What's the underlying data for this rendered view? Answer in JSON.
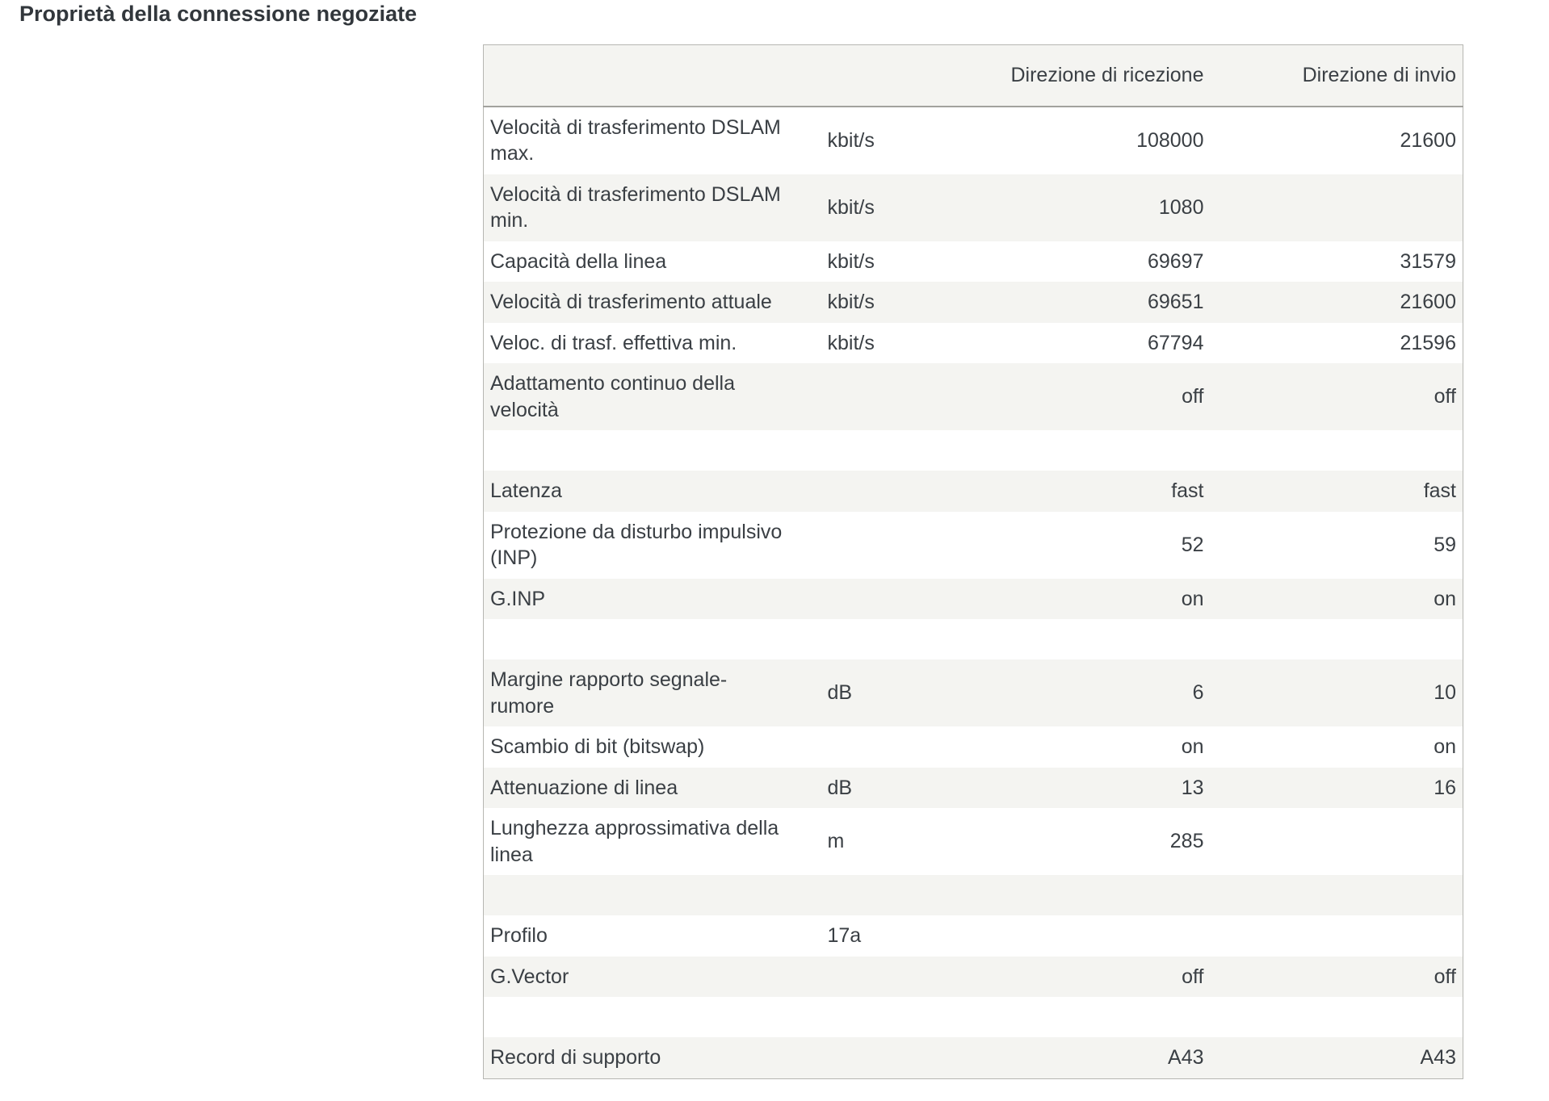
{
  "page": {
    "title": "Proprietà della connessione negoziate"
  },
  "table": {
    "header": {
      "label_col": "",
      "unit_col": "",
      "rx": "Direzione di ricezione",
      "tx": "Direzione di invio"
    },
    "rows": [
      {
        "label": "Velocità di trasferimento DSLAM\nmax.",
        "unit": "kbit/s",
        "rx": "108000",
        "tx": "21600"
      },
      {
        "label": "Velocità di trasferimento DSLAM\nmin.",
        "unit": "kbit/s",
        "rx": "1080",
        "tx": ""
      },
      {
        "label": "Capacità della linea",
        "unit": "kbit/s",
        "rx": "69697",
        "tx": "31579"
      },
      {
        "label": "Velocità di trasferimento attuale",
        "unit": "kbit/s",
        "rx": "69651",
        "tx": "21600"
      },
      {
        "label": "Veloc. di trasf. effettiva min.",
        "unit": "kbit/s",
        "rx": "67794",
        "tx": "21596"
      },
      {
        "label": "Adattamento continuo della\nvelocità",
        "unit": "",
        "rx": "off",
        "tx": "off"
      },
      {
        "spacer": true
      },
      {
        "label": "Latenza",
        "unit": "",
        "rx": "fast",
        "tx": "fast"
      },
      {
        "label": "Protezione da disturbo impulsivo\n(INP)",
        "unit": "",
        "rx": "52",
        "tx": "59"
      },
      {
        "label": "G.INP",
        "unit": "",
        "rx": "on",
        "tx": "on"
      },
      {
        "spacer": true
      },
      {
        "label": "Margine rapporto segnale-\nrumore",
        "unit": "dB",
        "rx": "6",
        "tx": "10"
      },
      {
        "label": "Scambio di bit (bitswap)",
        "unit": "",
        "rx": "on",
        "tx": "on"
      },
      {
        "label": "Attenuazione di linea",
        "unit": "dB",
        "rx": "13",
        "tx": "16"
      },
      {
        "label": "Lunghezza approssimativa della\nlinea",
        "unit": "m",
        "rx": "285",
        "tx": ""
      },
      {
        "spacer": true
      },
      {
        "label": "Profilo",
        "unit": "17a",
        "rx": "",
        "tx": ""
      },
      {
        "label": "G.Vector",
        "unit": "",
        "rx": "off",
        "tx": "off"
      },
      {
        "spacer": true
      },
      {
        "label": "Record di supporto",
        "unit": "",
        "rx": "A43",
        "tx": "A43"
      }
    ],
    "colors": {
      "stripe": "#f4f4f1",
      "table_border": "#b6b6b2",
      "header_underline": "#a2a29d",
      "text": "#3a3f44",
      "title_text": "#32373c",
      "page_bg": "#ffffff"
    }
  }
}
